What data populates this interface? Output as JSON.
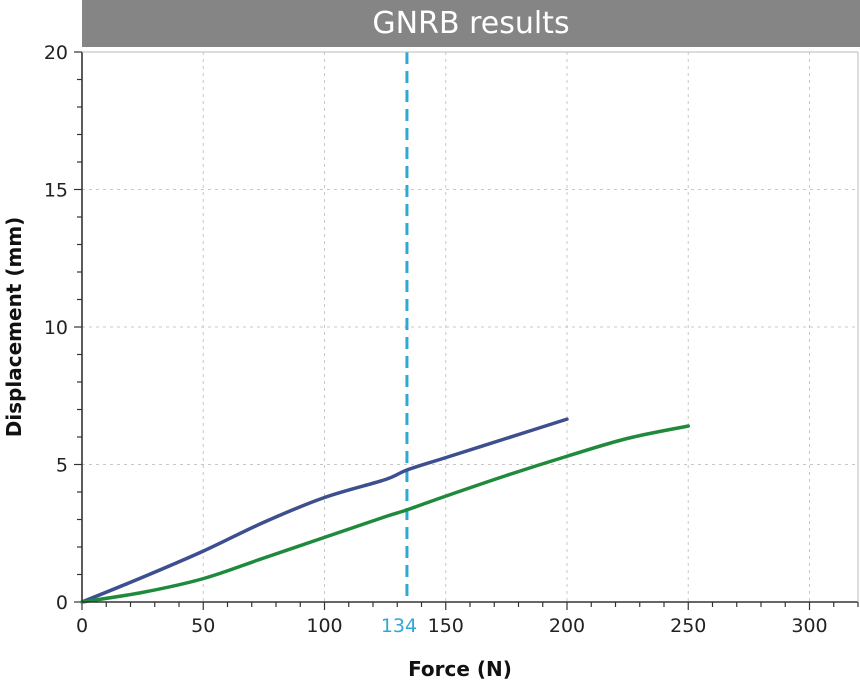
{
  "chart_data": {
    "type": "line",
    "title": "GNRB results",
    "xlabel": "Force (N)",
    "ylabel": "Displacement (mm)",
    "xlim": [
      0,
      320
    ],
    "ylim": [
      0,
      20
    ],
    "x_ticks": [
      0,
      50,
      100,
      150,
      200,
      250,
      300
    ],
    "y_ticks": [
      0,
      5,
      10,
      15,
      20
    ],
    "grid": true,
    "series": [
      {
        "color": "#3d4f8f",
        "x": [
          0,
          25,
          50,
          75,
          100,
          125,
          134,
          150,
          175,
          200
        ],
        "y": [
          0,
          0.9,
          1.85,
          2.9,
          3.8,
          4.45,
          4.8,
          5.25,
          5.95,
          6.65
        ]
      },
      {
        "color": "#1f8a3c",
        "x": [
          0,
          25,
          50,
          75,
          100,
          125,
          134,
          150,
          175,
          200,
          225,
          250
        ],
        "y": [
          0,
          0.35,
          0.85,
          1.6,
          2.35,
          3.1,
          3.35,
          3.85,
          4.6,
          5.3,
          5.95,
          6.4
        ]
      }
    ],
    "reference_line": {
      "x": 134,
      "label": "134",
      "color": "#2fa9d4"
    }
  }
}
